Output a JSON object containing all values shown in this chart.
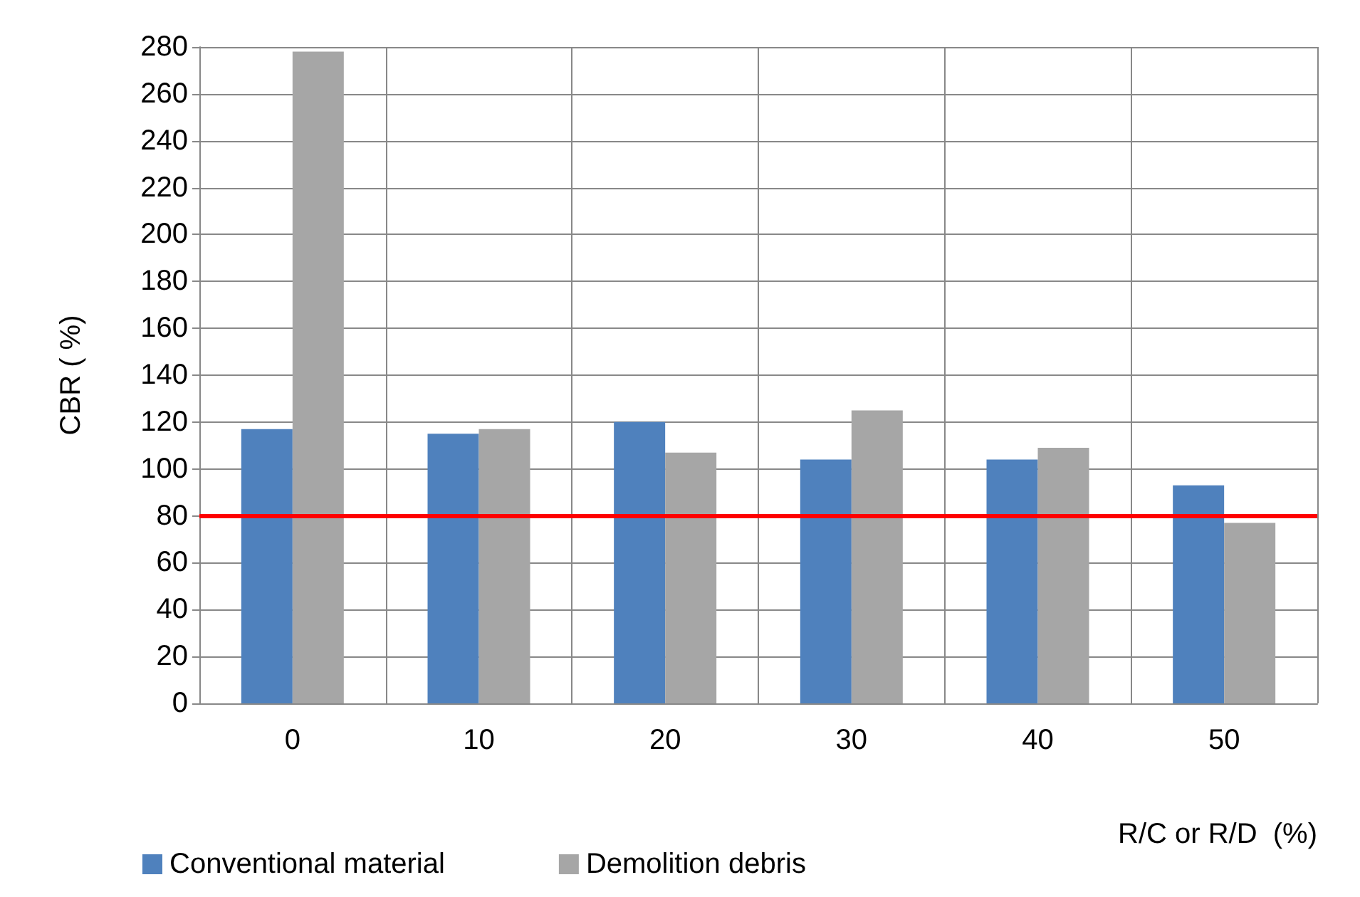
{
  "chart_data": {
    "type": "bar",
    "xlabel": "R/C or R/D  (%)",
    "ylabel": "CBR ( %)",
    "categories": [
      "0",
      "10",
      "20",
      "30",
      "40",
      "50"
    ],
    "series": [
      {
        "name": "Conventional material",
        "color": "#4f81bd",
        "values": [
          117,
          115,
          120,
          104,
          104,
          93
        ]
      },
      {
        "name": "Demolition debris",
        "color": "#a6a6a6",
        "values": [
          278,
          117,
          107,
          125,
          109,
          77
        ]
      }
    ],
    "ylim": [
      0,
      280
    ],
    "yticks": [
      0,
      20,
      40,
      60,
      80,
      100,
      120,
      140,
      160,
      180,
      200,
      220,
      240,
      260,
      280
    ],
    "ref_lines": [
      {
        "axis": "y",
        "value": 80,
        "color": "#ff0000"
      }
    ],
    "grid": true,
    "legend": "bottom left"
  }
}
